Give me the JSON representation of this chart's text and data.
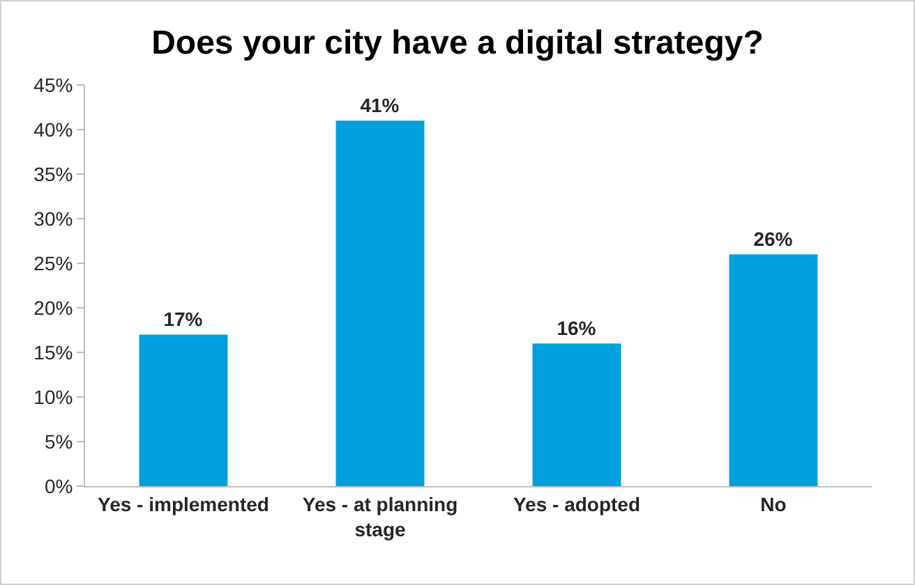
{
  "chart_data": {
    "type": "bar",
    "title": "Does your city have a digital strategy?",
    "categories": [
      "Yes - implemented",
      "Yes - at planning stage",
      "Yes - adopted",
      "No"
    ],
    "values": [
      17,
      41,
      16,
      26
    ],
    "value_labels": [
      "17%",
      "41%",
      "16%",
      "26%"
    ],
    "color": "#00a0dc",
    "ylim": [
      0,
      45
    ],
    "yticks": [
      {
        "value": 0,
        "label": "0%"
      },
      {
        "value": 5,
        "label": "5%"
      },
      {
        "value": 10,
        "label": "10%"
      },
      {
        "value": 15,
        "label": "15%"
      },
      {
        "value": 20,
        "label": "20%"
      },
      {
        "value": 25,
        "label": "25%"
      },
      {
        "value": 30,
        "label": "30%"
      },
      {
        "value": 35,
        "label": "35%"
      },
      {
        "value": 40,
        "label": "40%"
      },
      {
        "value": 45,
        "label": "45%"
      }
    ]
  }
}
